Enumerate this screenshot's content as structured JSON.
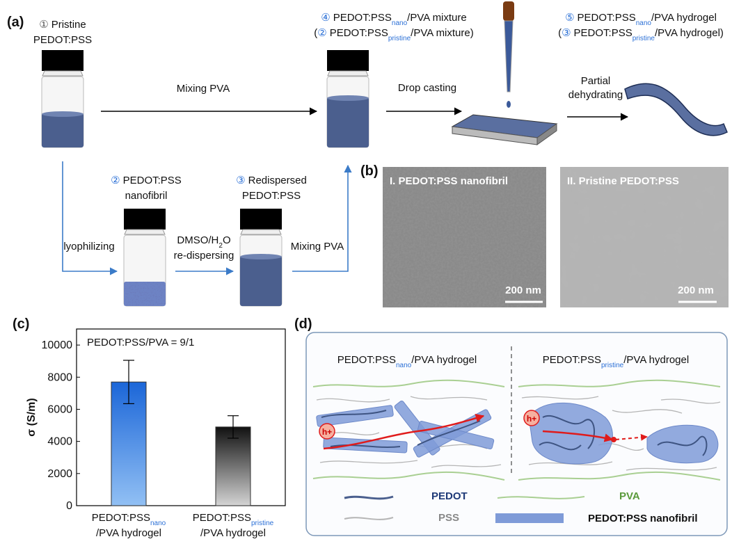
{
  "panel_a": {
    "label": "(a)",
    "pristine": {
      "num": "①",
      "line1": "Pristine",
      "line2": "PEDOT:PSS"
    },
    "mix_top": "Mixing PVA",
    "mixture": {
      "num1": "④",
      "pre1": "PEDOT:PSS",
      "sub1": "nano",
      "post1": "/PVA mixture",
      "open2": "(",
      "num2": "②",
      "pre2": "PEDOT:PSS",
      "sub2": "pristine",
      "post2": "/PVA mixture)"
    },
    "drop": "Drop casting",
    "hydrogel": {
      "num1": "⑤",
      "pre1": "PEDOT:PSS",
      "sub1": "nano",
      "post1": "/PVA hydrogel",
      "open2": "(",
      "num2": "③",
      "pre2": "PEDOT:PSS",
      "sub2": "pristine",
      "post2": "/PVA hydrogel)"
    },
    "dehydrate": {
      "line1": "Partial",
      "line2": "dehydrating"
    },
    "nanofibril": {
      "num": "②",
      "line1": "PEDOT:PSS",
      "line2": "nanofibril"
    },
    "lyophilizing": "lyophilizing",
    "dmso": {
      "pre": "DMSO/H",
      "sub": "2",
      "post": "O",
      "line2": "re-dispersing"
    },
    "redispersed": {
      "num": "③",
      "line1": "Redispersed",
      "line2": "PEDOT:PSS"
    },
    "mix_bottom": "Mixing PVA"
  },
  "panel_b": {
    "label": "(b)",
    "images": [
      {
        "caption": "I. PEDOT:PSS nanofibril",
        "scale": "200 nm"
      },
      {
        "caption": "II. Pristine PEDOT:PSS",
        "scale": "200 nm"
      }
    ]
  },
  "chart_data": {
    "type": "bar",
    "panel_label": "(c)",
    "annotation": "PEDOT:PSS/PVA = 9/1",
    "ylabel": "σ (S/m)",
    "categories": [
      {
        "text": "PEDOT:PSS",
        "sub": "nano",
        "line2": "/PVA hydrogel"
      },
      {
        "text": "PEDOT:PSS",
        "sub": "pristine",
        "line2": "/PVA hydrogel"
      }
    ],
    "values": [
      7700,
      4900
    ],
    "errors": [
      1350,
      700
    ],
    "colors": [
      [
        "#1b66d8",
        "#92c0f4"
      ],
      [
        "#111111",
        "#d4d4d4"
      ]
    ],
    "ylim": [
      0,
      11000
    ],
    "yticks": [
      0,
      2000,
      4000,
      6000,
      8000,
      10000
    ]
  },
  "panel_d": {
    "label": "(d)",
    "left_title": {
      "pre": "PEDOT:PSS",
      "sub": "nano",
      "post": "/PVA hydrogel"
    },
    "right_title": {
      "pre": "PEDOT:PSS",
      "sub": "pristine",
      "post": "/PVA hydrogel"
    },
    "hole": "h+",
    "legend": {
      "pedot": "PEDOT",
      "pva": "PVA",
      "pss": "PSS",
      "fibril": "PEDOT:PSS nanofibril"
    }
  }
}
